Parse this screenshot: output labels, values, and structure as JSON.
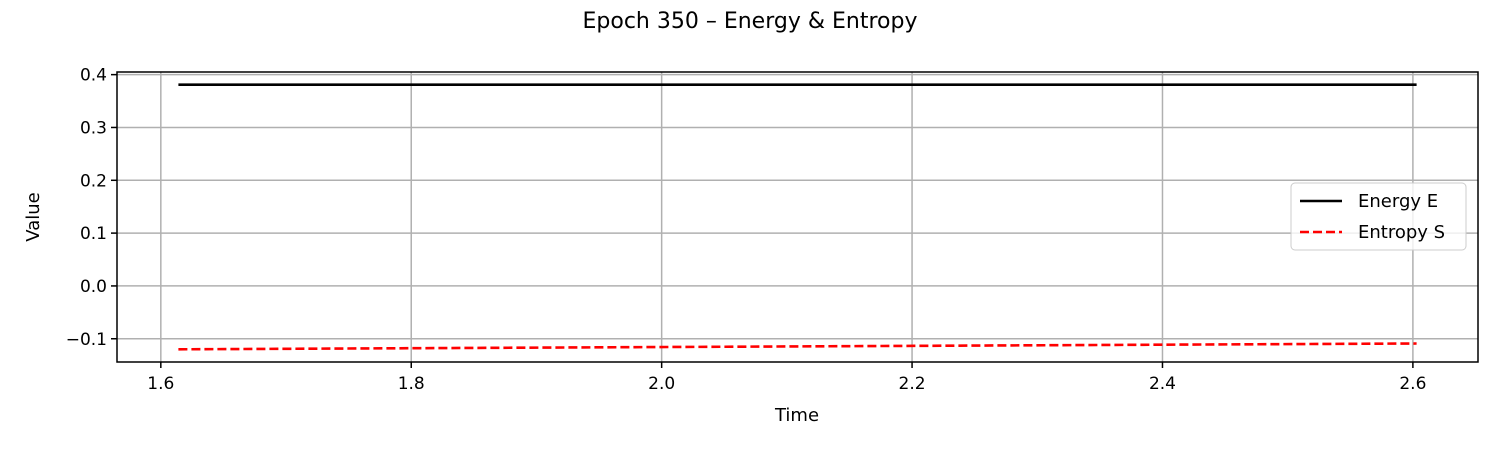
{
  "chart_data": {
    "type": "line",
    "title": "Epoch 350 – Energy & Entropy",
    "xlabel": "Time",
    "ylabel": "Value",
    "xlim": [
      1.565,
      2.652
    ],
    "ylim": [
      -0.144,
      0.405
    ],
    "xticks": [
      1.6,
      1.8,
      2.0,
      2.2,
      2.4,
      2.6
    ],
    "xtick_labels": [
      "1.6",
      "1.8",
      "2.0",
      "2.2",
      "2.4",
      "2.6"
    ],
    "yticks": [
      -0.1,
      0.0,
      0.1,
      0.2,
      0.3,
      0.4
    ],
    "ytick_labels": [
      "−0.1",
      "0.0",
      "0.1",
      "0.2",
      "0.3",
      "0.4"
    ],
    "grid": true,
    "legend_position": "center-right",
    "series": [
      {
        "name": "Energy E",
        "color": "#000000",
        "style": "solid",
        "x": [
          1.614,
          2.603
        ],
        "y": [
          0.381,
          0.381
        ]
      },
      {
        "name": "Entropy S",
        "color": "#ff0000",
        "style": "dashed",
        "x": [
          1.614,
          2.603
        ],
        "y": [
          -0.12,
          -0.109
        ]
      }
    ]
  }
}
